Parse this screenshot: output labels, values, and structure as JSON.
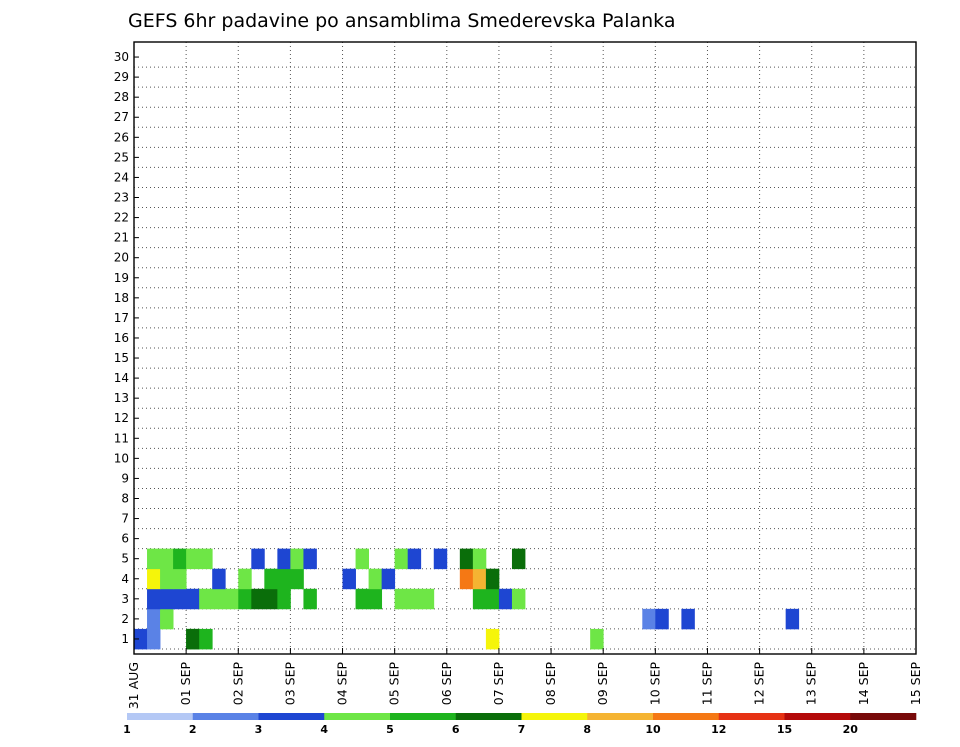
{
  "chart_data": {
    "type": "heatmap",
    "title": "GEFS 6hr padavine po ansamblima Smederevska Palanka",
    "y_categories": [
      "1",
      "2",
      "3",
      "4",
      "5",
      "6",
      "7",
      "8",
      "9",
      "10",
      "11",
      "12",
      "13",
      "14",
      "15",
      "16",
      "17",
      "18",
      "19",
      "20",
      "21",
      "22",
      "23",
      "24",
      "25",
      "26",
      "27",
      "28",
      "29",
      "30"
    ],
    "x_labels": [
      "31 AUG",
      "01 SEP",
      "02 SEP",
      "03 SEP",
      "04 SEP",
      "05 SEP",
      "06 SEP",
      "07 SEP",
      "08 SEP",
      "09 SEP",
      "10 SEP",
      "11 SEP",
      "12 SEP",
      "13 SEP",
      "14 SEP",
      "15 SEP"
    ],
    "time_step_hours": 6,
    "steps_per_day": 4,
    "grid": "dotted",
    "colorbar": {
      "position": "bottom",
      "levels": [
        "1",
        "2",
        "3",
        "4",
        "5",
        "6",
        "7",
        "8",
        "10",
        "12",
        "15",
        "20"
      ],
      "colors": [
        "#b4c8f5",
        "#5a82e6",
        "#1e46d2",
        "#6ee646",
        "#1eb41e",
        "#0a6e0a",
        "#f5f50a",
        "#f5b432",
        "#f57814",
        "#e63214",
        "#b40a0a",
        "#780a0a"
      ]
    },
    "cells": [
      [
        0,
        1,
        2
      ],
      [
        1,
        1,
        1
      ],
      [
        4,
        1,
        4
      ],
      [
        4,
        1,
        5
      ],
      [
        5,
        1,
        4
      ],
      [
        27,
        1,
        6
      ],
      [
        35,
        1,
        3
      ],
      [
        1,
        2,
        1
      ],
      [
        2,
        2,
        3
      ],
      [
        39,
        2,
        1
      ],
      [
        40,
        2,
        2
      ],
      [
        42,
        2,
        2
      ],
      [
        50,
        2,
        2
      ],
      [
        67,
        2,
        1
      ],
      [
        70,
        2,
        2
      ],
      [
        72,
        2,
        1
      ],
      [
        78,
        2,
        1
      ],
      [
        82,
        2,
        2
      ],
      [
        86,
        2,
        1
      ],
      [
        93,
        2,
        3
      ],
      [
        94,
        2,
        4
      ],
      [
        98,
        2,
        5
      ],
      [
        103,
        2,
        6
      ],
      [
        111,
        2,
        6
      ],
      [
        118,
        2,
        2
      ],
      [
        125,
        2,
        1
      ],
      [
        135,
        2,
        2
      ],
      [
        145,
        2,
        3
      ],
      [
        148,
        2,
        4
      ],
      [
        152,
        2,
        3
      ],
      [
        155,
        2,
        3
      ],
      [
        163,
        2,
        4
      ],
      [
        166,
        2,
        4
      ],
      [
        170,
        2,
        2
      ],
      [
        173,
        2,
        1
      ],
      [
        174,
        2,
        1
      ],
      [
        176,
        2,
        2
      ],
      [
        183,
        2,
        3
      ],
      [
        185,
        2,
        4
      ],
      [
        187,
        2,
        1
      ],
      [
        196,
        2,
        4
      ],
      [
        198,
        2,
        2
      ],
      [
        209,
        2,
        1
      ],
      [
        210,
        2,
        1
      ],
      [
        214,
        2,
        2
      ],
      [
        221,
        2,
        4
      ],
      [
        223,
        2,
        4
      ],
      [
        225,
        2,
        2
      ],
      [
        231,
        2,
        1
      ],
      [
        233,
        2,
        1
      ],
      [
        235,
        2,
        2
      ],
      [
        239,
        2,
        2
      ],
      [
        240,
        2,
        3
      ],
      [
        243,
        2,
        3
      ],
      [
        244,
        2,
        4
      ],
      [
        246,
        2,
        4
      ],
      [
        249,
        2,
        1
      ],
      [
        252,
        2,
        1
      ],
      [
        254,
        2,
        1
      ],
      [
        255,
        2,
        1
      ],
      [
        257,
        2,
        1
      ],
      [
        259,
        2,
        1
      ],
      [
        261,
        2,
        2
      ],
      [
        262,
        2,
        2
      ],
      [
        264,
        2,
        1
      ],
      [
        267,
        2,
        1
      ],
      [
        269,
        2,
        1
      ],
      [
        273,
        2,
        1
      ],
      [
        276,
        2,
        2
      ],
      [
        278,
        2,
        2
      ],
      [
        284,
        2,
        1
      ],
      [
        286,
        2,
        2
      ],
      [
        291,
        2,
        3
      ],
      [
        296,
        2,
        1
      ],
      [
        298,
        2,
        1
      ],
      [
        1,
        3,
        2
      ],
      [
        2,
        3,
        2
      ],
      [
        3,
        3,
        2
      ],
      [
        4,
        3,
        2
      ],
      [
        5,
        3,
        3
      ],
      [
        6,
        3,
        3
      ],
      [
        7,
        3,
        3
      ],
      [
        8,
        3,
        4
      ],
      [
        9,
        3,
        5
      ],
      [
        10,
        3,
        5
      ],
      [
        11,
        3,
        4
      ],
      [
        13,
        3,
        4
      ],
      [
        17,
        3,
        4
      ],
      [
        18,
        3,
        4
      ],
      [
        20,
        3,
        3
      ],
      [
        21,
        3,
        3
      ],
      [
        22,
        3,
        3
      ],
      [
        26,
        3,
        4
      ],
      [
        27,
        3,
        4
      ],
      [
        28,
        3,
        2
      ],
      [
        29,
        3,
        3
      ],
      [
        1,
        4,
        6
      ],
      [
        2,
        4,
        3
      ],
      [
        3,
        4,
        3
      ],
      [
        6,
        4,
        2
      ],
      [
        8,
        4,
        3
      ],
      [
        10,
        4,
        4
      ],
      [
        11,
        4,
        4
      ],
      [
        12,
        4,
        4
      ],
      [
        16,
        4,
        2
      ],
      [
        18,
        4,
        3
      ],
      [
        19,
        4,
        2
      ],
      [
        25,
        4,
        8
      ],
      [
        26,
        4,
        7
      ],
      [
        27,
        4,
        5
      ],
      [
        1,
        5,
        3
      ],
      [
        2,
        5,
        3
      ],
      [
        3,
        5,
        4
      ],
      [
        4,
        5,
        3
      ],
      [
        5,
        5,
        3
      ],
      [
        9,
        5,
        2
      ],
      [
        11,
        5,
        2
      ],
      [
        12,
        5,
        3
      ],
      [
        13,
        5,
        2
      ],
      [
        17,
        5,
        3
      ],
      [
        20,
        5,
        3
      ],
      [
        21,
        5,
        2
      ],
      [
        23,
        5,
        2
      ],
      [
        25,
        5,
        5
      ],
      [
        26,
        5,
        3
      ],
      [
        29,
        5,
        5
      ]
    ],
    "cells_note_removed": true
  }
}
